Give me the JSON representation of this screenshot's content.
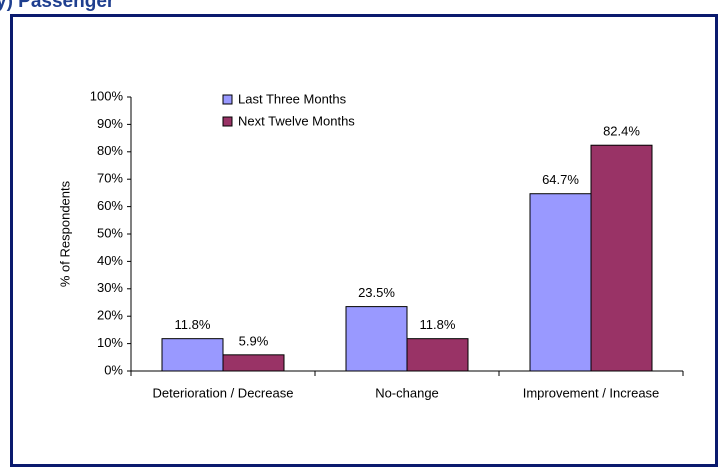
{
  "chart_data": {
    "type": "bar",
    "title": "y) Passenger",
    "ylabel": "% of Respondents",
    "categories": [
      "Deterioration / Decrease",
      "No-change",
      "Improvement / Increase"
    ],
    "series": [
      {
        "name": "Last Three Months",
        "color": "#9999ff",
        "values": [
          11.8,
          23.5,
          64.7
        ],
        "value_labels": [
          "11.8%",
          "23.5%",
          "64.7%"
        ]
      },
      {
        "name": "Next Twelve Months",
        "color": "#993366",
        "values": [
          5.9,
          11.8,
          82.4
        ],
        "value_labels": [
          "5.9%",
          "11.8%",
          "82.4%"
        ]
      }
    ],
    "ylim": [
      0,
      100
    ],
    "yticks": [
      {
        "value": 0,
        "label": "0%"
      },
      {
        "value": 10,
        "label": "10%"
      },
      {
        "value": 20,
        "label": "20%"
      },
      {
        "value": 30,
        "label": "30%"
      },
      {
        "value": 40,
        "label": "40%"
      },
      {
        "value": 50,
        "label": "50%"
      },
      {
        "value": 60,
        "label": "60%"
      },
      {
        "value": 70,
        "label": "70%"
      },
      {
        "value": 80,
        "label": "80%"
      },
      {
        "value": 90,
        "label": "90%"
      },
      {
        "value": 100,
        "label": "100%"
      }
    ],
    "grid": false,
    "legend": "top-left"
  }
}
